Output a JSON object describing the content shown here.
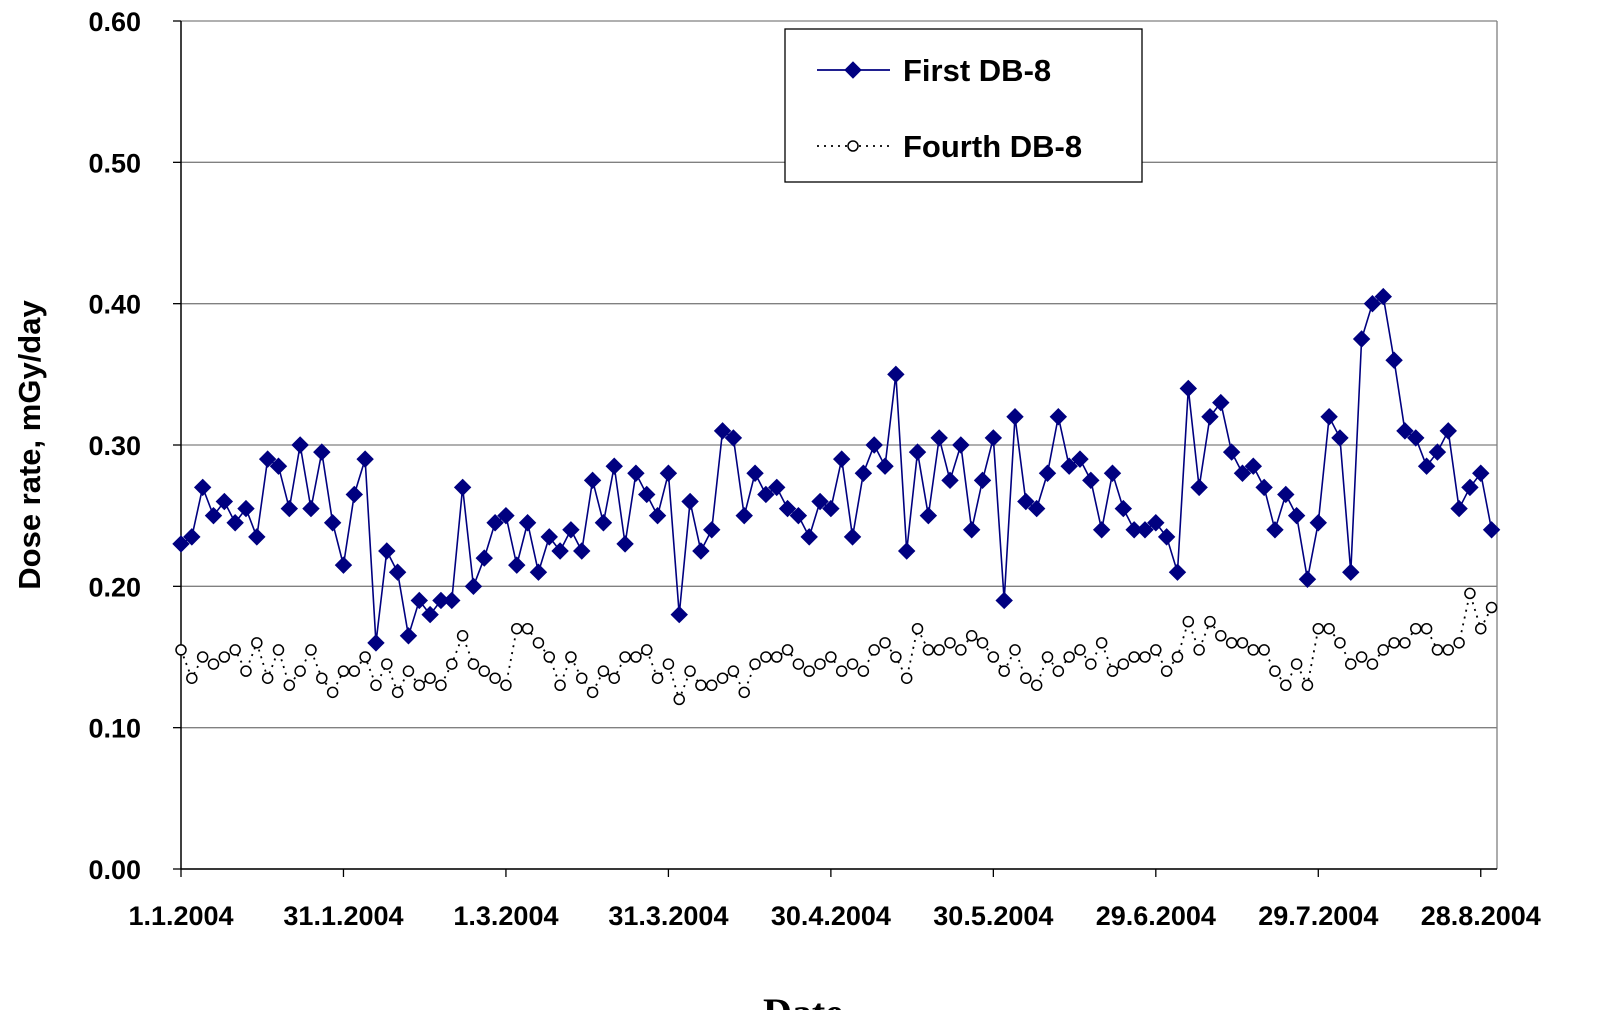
{
  "chart_data": {
    "type": "line",
    "x_label": "Date",
    "y_label": "Dose rate, mGy/day",
    "x": [
      0,
      2,
      4,
      6,
      8,
      10,
      12,
      14,
      16,
      18,
      20,
      22,
      24,
      26,
      28,
      30,
      32,
      34,
      36,
      38,
      40,
      42,
      44,
      46,
      48,
      50,
      52,
      54,
      56,
      58,
      60,
      62,
      64,
      66,
      68,
      70,
      72,
      74,
      76,
      78,
      80,
      82,
      84,
      86,
      88,
      90,
      92,
      94,
      96,
      98,
      100,
      102,
      104,
      106,
      108,
      110,
      112,
      114,
      116,
      118,
      120,
      122,
      124,
      126,
      128,
      130,
      132,
      134,
      136,
      138,
      140,
      142,
      144,
      146,
      148,
      150,
      152,
      154,
      156,
      158,
      160,
      162,
      164,
      166,
      168,
      170,
      172,
      174,
      176,
      178,
      180,
      182,
      184,
      186,
      188,
      190,
      192,
      194,
      196,
      198,
      200,
      202,
      204,
      206,
      208,
      210,
      212,
      214,
      216,
      218,
      220,
      222,
      224,
      226,
      228,
      230,
      232,
      234,
      236,
      238,
      240,
      242
    ],
    "series": [
      {
        "name": "First DB-8",
        "color": "#000080",
        "marker": "diamond",
        "dash": "solid",
        "values": [
          0.23,
          0.235,
          0.27,
          0.25,
          0.26,
          0.245,
          0.255,
          0.235,
          0.29,
          0.285,
          0.255,
          0.3,
          0.255,
          0.295,
          0.245,
          0.215,
          0.265,
          0.29,
          0.16,
          0.225,
          0.21,
          0.165,
          0.19,
          0.18,
          0.19,
          0.19,
          0.27,
          0.2,
          0.22,
          0.245,
          0.25,
          0.215,
          0.245,
          0.21,
          0.235,
          0.225,
          0.24,
          0.225,
          0.275,
          0.245,
          0.285,
          0.23,
          0.28,
          0.265,
          0.25,
          0.28,
          0.18,
          0.26,
          0.225,
          0.24,
          0.31,
          0.305,
          0.25,
          0.28,
          0.265,
          0.27,
          0.255,
          0.25,
          0.235,
          0.26,
          0.255,
          0.29,
          0.235,
          0.28,
          0.3,
          0.285,
          0.35,
          0.225,
          0.295,
          0.25,
          0.305,
          0.275,
          0.3,
          0.24,
          0.275,
          0.305,
          0.19,
          0.32,
          0.26,
          0.255,
          0.28,
          0.32,
          0.285,
          0.29,
          0.275,
          0.24,
          0.28,
          0.255,
          0.24,
          0.24,
          0.245,
          0.235,
          0.21,
          0.34,
          0.27,
          0.32,
          0.33,
          0.295,
          0.28,
          0.285,
          0.27,
          0.24,
          0.265,
          0.25,
          0.205,
          0.245,
          0.32,
          0.305,
          0.21,
          0.375,
          0.4,
          0.405,
          0.36,
          0.31,
          0.305,
          0.285,
          0.295,
          0.31,
          0.255,
          0.27,
          0.28,
          0.24
        ]
      },
      {
        "name": "Fourth DB-8",
        "color": "#000000",
        "marker": "circle",
        "dash": "dotted",
        "values": [
          0.155,
          0.135,
          0.15,
          0.145,
          0.15,
          0.155,
          0.14,
          0.16,
          0.135,
          0.155,
          0.13,
          0.14,
          0.155,
          0.135,
          0.125,
          0.14,
          0.14,
          0.15,
          0.13,
          0.145,
          0.125,
          0.14,
          0.13,
          0.135,
          0.13,
          0.145,
          0.165,
          0.145,
          0.14,
          0.135,
          0.13,
          0.17,
          0.17,
          0.16,
          0.15,
          0.13,
          0.15,
          0.135,
          0.125,
          0.14,
          0.135,
          0.15,
          0.15,
          0.155,
          0.135,
          0.145,
          0.12,
          0.14,
          0.13,
          0.13,
          0.135,
          0.14,
          0.125,
          0.145,
          0.15,
          0.15,
          0.155,
          0.145,
          0.14,
          0.145,
          0.15,
          0.14,
          0.145,
          0.14,
          0.155,
          0.16,
          0.15,
          0.135,
          0.17,
          0.155,
          0.155,
          0.16,
          0.155,
          0.165,
          0.16,
          0.15,
          0.14,
          0.155,
          0.135,
          0.13,
          0.15,
          0.14,
          0.15,
          0.155,
          0.145,
          0.16,
          0.14,
          0.145,
          0.15,
          0.15,
          0.155,
          0.14,
          0.15,
          0.175,
          0.155,
          0.175,
          0.165,
          0.16,
          0.16,
          0.155,
          0.155,
          0.14,
          0.13,
          0.145,
          0.13,
          0.17,
          0.17,
          0.16,
          0.145,
          0.15,
          0.145,
          0.155,
          0.16,
          0.16,
          0.17,
          0.17,
          0.155,
          0.155,
          0.16,
          0.195,
          0.17,
          0.185
        ]
      }
    ],
    "xlim": [
      0,
      243
    ],
    "xticks": [
      {
        "value": 0,
        "label": "1.1.2004"
      },
      {
        "value": 30,
        "label": "31.1.2004"
      },
      {
        "value": 60,
        "label": "1.3.2004"
      },
      {
        "value": 90,
        "label": "31.3.2004"
      },
      {
        "value": 120,
        "label": "30.4.2004"
      },
      {
        "value": 150,
        "label": "30.5.2004"
      },
      {
        "value": 180,
        "label": "29.6.2004"
      },
      {
        "value": 210,
        "label": "29.7.2004"
      },
      {
        "value": 240,
        "label": "28.8.2004"
      }
    ],
    "ylim": [
      0,
      0.6
    ],
    "yticks": [
      {
        "value": 0,
        "label": "0.00"
      },
      {
        "value": 0.1,
        "label": "0.10"
      },
      {
        "value": 0.2,
        "label": "0.20"
      },
      {
        "value": 0.3,
        "label": "0.30"
      },
      {
        "value": 0.4,
        "label": "0.40"
      },
      {
        "value": 0.5,
        "label": "0.50"
      },
      {
        "value": 0.6,
        "label": "0.60"
      }
    ],
    "grid": true,
    "legend": "top-right"
  }
}
